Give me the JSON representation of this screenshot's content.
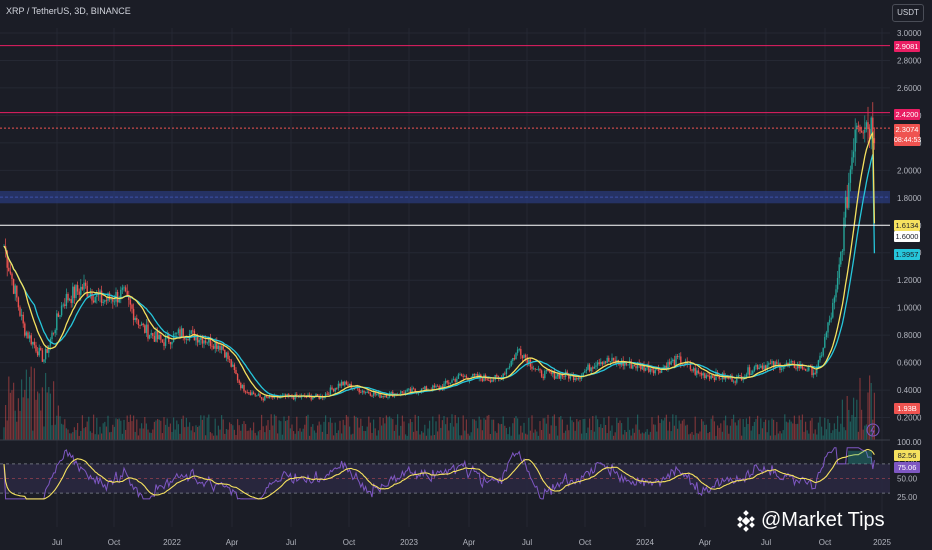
{
  "title": "XRP / TetherUS, 3D, BINANCE",
  "currency_button": "USDT",
  "watermark": "@Market Tips",
  "badges": {
    "res_high": "2.9081",
    "res_mid": "2.4200",
    "price": "2.3074",
    "countdown": "08:44:53",
    "ma_yellow": "1.6134",
    "level": "1.6000",
    "ma_teal": "1.3957",
    "volume": "1.93B",
    "rsi_ma": "82.56",
    "rsi": "75.06"
  },
  "colors": {
    "up": "#26a69a",
    "down": "#ef5350",
    "ma_yellow": "#f5e15f",
    "ma_teal": "#26c6da",
    "resistance": "#e91e63",
    "rsi_line": "#7e57c2",
    "rsi_band": "#2a2840",
    "support_zone": "#2a3a7a"
  },
  "chart_data": [
    {
      "type": "candlestick",
      "title": "XRP / TetherUS, 3D, BINANCE",
      "xlabel": "",
      "ylabel": "USDT",
      "x_ticks": [
        "Jul",
        "Oct",
        "2022",
        "Apr",
        "Jul",
        "Oct",
        "2023",
        "Apr",
        "Jul",
        "Oct",
        "2024",
        "Apr",
        "Jul",
        "Oct",
        "2025"
      ],
      "y_ticks": [
        "3.0000",
        "2.8000",
        "2.6000",
        "2.4000",
        "2.2000",
        "2.0000",
        "1.8000",
        "1.6000",
        "1.4000",
        "1.2000",
        "1.0000",
        "0.8000",
        "0.6000",
        "0.4000",
        "0.2000"
      ],
      "ylim": [
        0.0,
        3.0
      ],
      "approx_close_path": [
        {
          "x": "2021-05",
          "y": 1.45
        },
        {
          "x": "2021-06",
          "y": 0.85
        },
        {
          "x": "2021-07",
          "y": 0.62
        },
        {
          "x": "2021-08",
          "y": 1.05
        },
        {
          "x": "2021-09",
          "y": 1.15
        },
        {
          "x": "2021-10",
          "y": 1.05
        },
        {
          "x": "2021-11",
          "y": 1.1
        },
        {
          "x": "2021-12",
          "y": 0.85
        },
        {
          "x": "2022-01",
          "y": 0.75
        },
        {
          "x": "2022-02",
          "y": 0.82
        },
        {
          "x": "2022-03",
          "y": 0.78
        },
        {
          "x": "2022-04",
          "y": 0.72
        },
        {
          "x": "2022-05",
          "y": 0.42
        },
        {
          "x": "2022-06",
          "y": 0.34
        },
        {
          "x": "2022-07",
          "y": 0.35
        },
        {
          "x": "2022-09",
          "y": 0.35
        },
        {
          "x": "2022-10",
          "y": 0.45
        },
        {
          "x": "2022-11",
          "y": 0.4
        },
        {
          "x": "2022-12",
          "y": 0.36
        },
        {
          "x": "2023-01",
          "y": 0.38
        },
        {
          "x": "2023-03",
          "y": 0.42
        },
        {
          "x": "2023-04",
          "y": 0.5
        },
        {
          "x": "2023-06",
          "y": 0.48
        },
        {
          "x": "2023-07",
          "y": 0.7
        },
        {
          "x": "2023-08",
          "y": 0.52
        },
        {
          "x": "2023-10",
          "y": 0.5
        },
        {
          "x": "2023-11",
          "y": 0.62
        },
        {
          "x": "2023-12",
          "y": 0.6
        },
        {
          "x": "2024-02",
          "y": 0.55
        },
        {
          "x": "2024-03",
          "y": 0.62
        },
        {
          "x": "2024-04",
          "y": 0.52
        },
        {
          "x": "2024-05",
          "y": 0.5
        },
        {
          "x": "2024-06",
          "y": 0.48
        },
        {
          "x": "2024-07",
          "y": 0.58
        },
        {
          "x": "2024-08",
          "y": 0.58
        },
        {
          "x": "2024-09",
          "y": 0.58
        },
        {
          "x": "2024-10",
          "y": 0.53
        },
        {
          "x": "2024-11",
          "y": 1.1
        },
        {
          "x": "2024-12",
          "y": 2.4
        },
        {
          "x": "2025-01",
          "y": 2.31
        }
      ],
      "horizontal_levels": [
        {
          "value": 2.9081,
          "label": "2.9081"
        },
        {
          "value": 2.42,
          "label": "2.4200"
        },
        {
          "value": 2.3074,
          "label": "2.3074",
          "dashed": true
        },
        {
          "value": 1.6,
          "label": "1.6000"
        }
      ],
      "support_zone": [
        1.76,
        1.85
      ],
      "series": [
        {
          "name": "",
          "color": "#f5e15f",
          "last": 1.6134
        },
        {
          "name": "",
          "color": "#26c6da",
          "last": 1.3957
        }
      ],
      "volume_last": "1.93B"
    },
    {
      "type": "line",
      "title": "",
      "y_ticks": [
        "100.00",
        "75.00",
        "50.00",
        "25.00"
      ],
      "ylim": [
        0,
        100
      ],
      "band": [
        30,
        70
      ],
      "dashed_levels": [
        70,
        50,
        30
      ],
      "series": [
        {
          "name": "",
          "color": "#7e57c2",
          "last": 75.06
        },
        {
          "name": "",
          "color": "#f5e15f",
          "last": 82.56
        }
      ]
    }
  ]
}
